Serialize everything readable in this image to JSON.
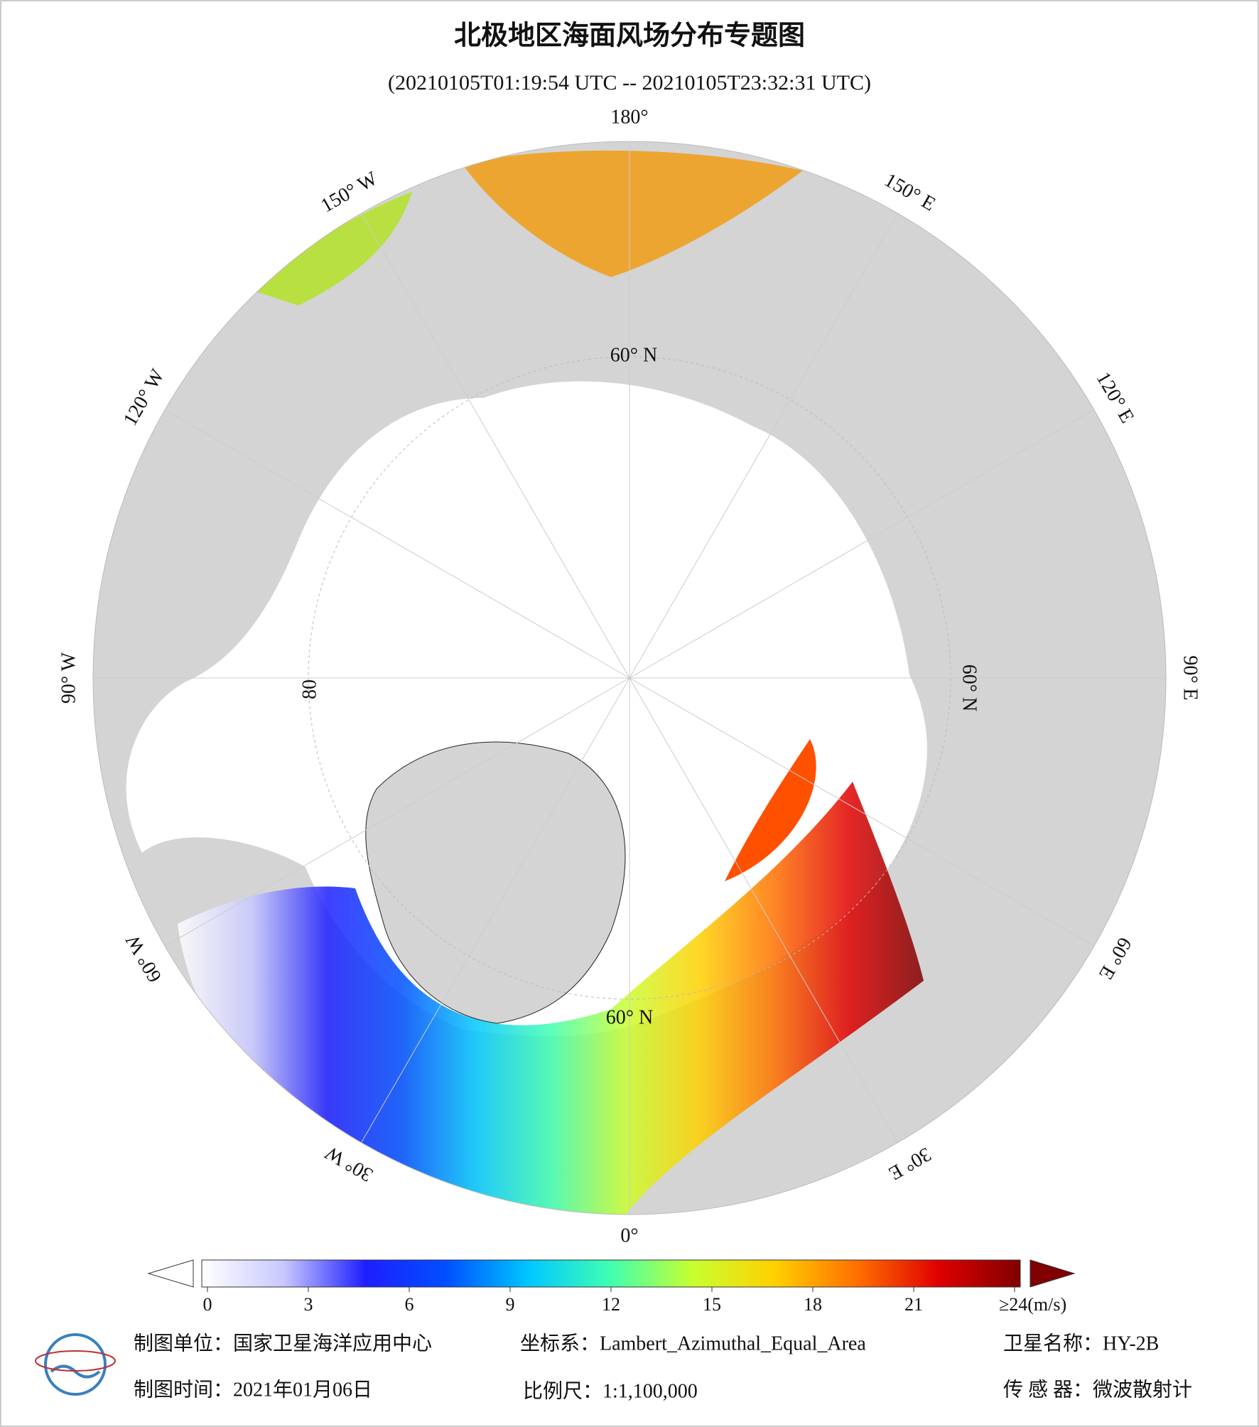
{
  "header": {
    "title": "北极地区海面风场分布专题图",
    "subtitle": "(20210105T01:19:54 UTC -- 20210105T23:32:31 UTC)"
  },
  "map": {
    "meridians": [
      {
        "value": 180,
        "label": "180°"
      },
      {
        "value": -150,
        "label": "150° W"
      },
      {
        "value": -120,
        "label": "120° W"
      },
      {
        "value": -90,
        "label": "90° W"
      },
      {
        "value": -60,
        "label": "60° W"
      },
      {
        "value": -30,
        "label": "30° W"
      },
      {
        "value": 0,
        "label": "0°"
      },
      {
        "value": 30,
        "label": "30° E"
      },
      {
        "value": 60,
        "label": "60° E"
      },
      {
        "value": 90,
        "label": "90° E"
      },
      {
        "value": 120,
        "label": "120° E"
      },
      {
        "value": 150,
        "label": "150° E"
      }
    ],
    "parallel_labels": [
      "60° N",
      "60° N",
      "60° N",
      "80"
    ]
  },
  "colorbar": {
    "ticks": [
      0,
      3,
      6,
      9,
      12,
      15,
      18,
      21,
      {
        "value": 24,
        "label": "≥24(m/s)"
      }
    ],
    "colors": [
      "#ffffff",
      "#c8c8ff",
      "#1e1eff",
      "#0050ff",
      "#00c8ff",
      "#40ffb0",
      "#c8ff30",
      "#ffd000",
      "#ff7000",
      "#e00000",
      "#800000"
    ]
  },
  "footer": {
    "unit": "制图单位：国家卫星海洋应用中心",
    "crs": "坐标系：Lambert_Azimuthal_Equal_Area",
    "satellite": "卫星名称：HY-2B",
    "date": "制图时间：2021年01月06日",
    "scale": "比例尺：1:1,100,000",
    "sensor": "传 感 器：微波散射计"
  }
}
